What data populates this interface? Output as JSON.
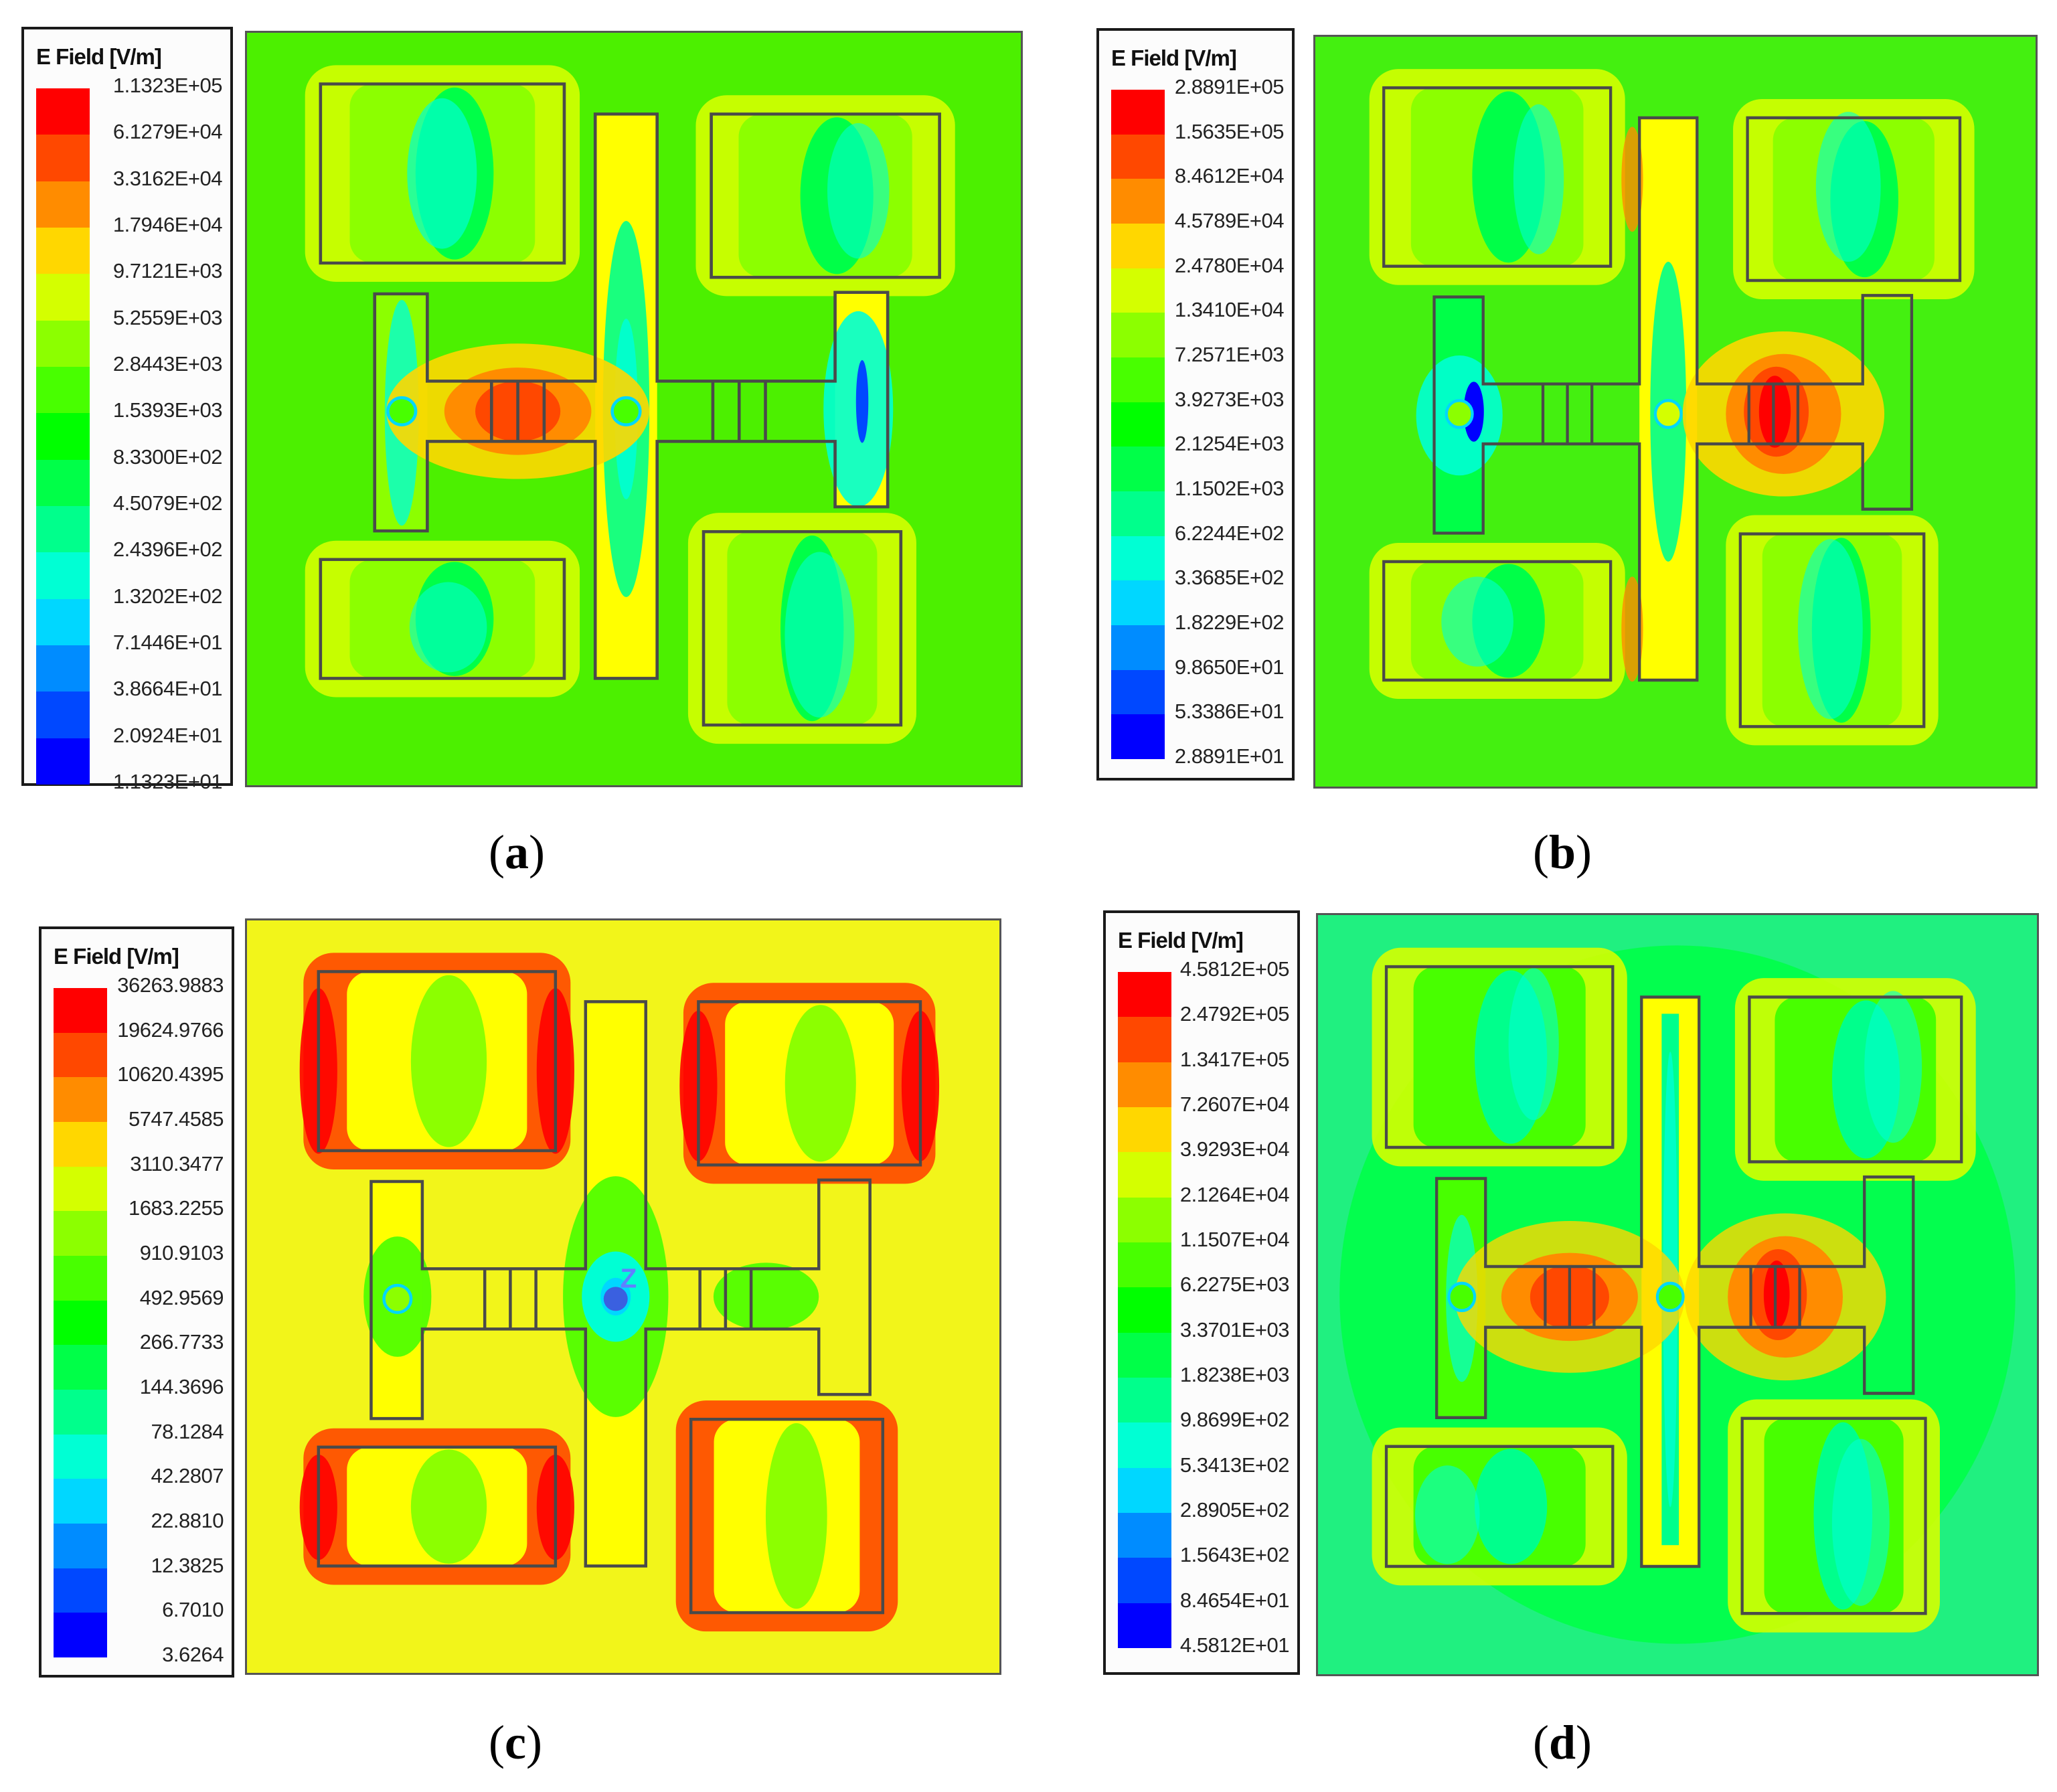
{
  "figure": {
    "panels": [
      {
        "id": "a",
        "caption_letter": "a",
        "legend_title": "E Field [V/m]",
        "legend_values": [
          "1.1323E+05",
          "6.1279E+04",
          "3.3162E+04",
          "1.7946E+04",
          "9.7121E+03",
          "5.2559E+03",
          "2.8443E+03",
          "1.5393E+03",
          "8.3300E+02",
          "4.5079E+02",
          "2.4396E+02",
          "1.3202E+02",
          "7.1446E+01",
          "3.8664E+01",
          "2.0924E+01",
          "1.1323E+01"
        ],
        "background_color": "#4cf000",
        "hotspots": "left-gap red/orange; right gap cool; dark blue streak in right arm"
      },
      {
        "id": "b",
        "caption_letter": "b",
        "legend_title": "E Field [V/m]",
        "legend_values": [
          "2.8891E+05",
          "1.5635E+05",
          "8.4612E+04",
          "4.5789E+04",
          "2.4780E+04",
          "1.3410E+04",
          "7.2571E+03",
          "3.9273E+03",
          "2.1254E+03",
          "1.1502E+03",
          "6.2244E+02",
          "3.3685E+02",
          "1.8229E+02",
          "9.8650E+01",
          "5.3386E+01",
          "2.8891E+01"
        ],
        "background_color": "#44f010",
        "hotspots": "right-gap red; left side blue near left via"
      },
      {
        "id": "c",
        "caption_letter": "c",
        "legend_title": "E Field [V/m]",
        "legend_values": [
          "36263.9883",
          "19624.9766",
          "10620.4395",
          "5747.4585",
          "3110.3477",
          "1683.2255",
          "910.9103",
          "492.9569",
          "266.7733",
          "144.3696",
          "78.1284",
          "42.2807",
          "22.8810",
          "12.3825",
          "6.7010",
          "3.6264"
        ],
        "background_color": "#f2f51a",
        "axis_marker": "Z",
        "hotspots": "red/orange edges on four patches; cyan/blue at center feed"
      },
      {
        "id": "d",
        "caption_letter": "d",
        "legend_title": "E Field [V/m]",
        "legend_values": [
          "4.5812E+05",
          "2.4792E+05",
          "1.3417E+05",
          "7.2607E+04",
          "3.9293E+04",
          "2.1264E+04",
          "1.1507E+04",
          "6.2275E+03",
          "3.3701E+03",
          "1.8238E+03",
          "9.8699E+02",
          "5.3413E+02",
          "2.8905E+02",
          "1.5643E+02",
          "8.4654E+01",
          "4.5812E+01"
        ],
        "background_color": "#20f080",
        "hotspots": "both gaps red/orange; central strip cyan"
      }
    ],
    "colormap": [
      "#ff0000",
      "#ff4800",
      "#ff8c00",
      "#ffd700",
      "#d4ff00",
      "#8cff00",
      "#48ff00",
      "#00ff00",
      "#00ff48",
      "#00ff8c",
      "#00ffd4",
      "#00d7ff",
      "#008cff",
      "#0048ff",
      "#0000ff"
    ]
  }
}
